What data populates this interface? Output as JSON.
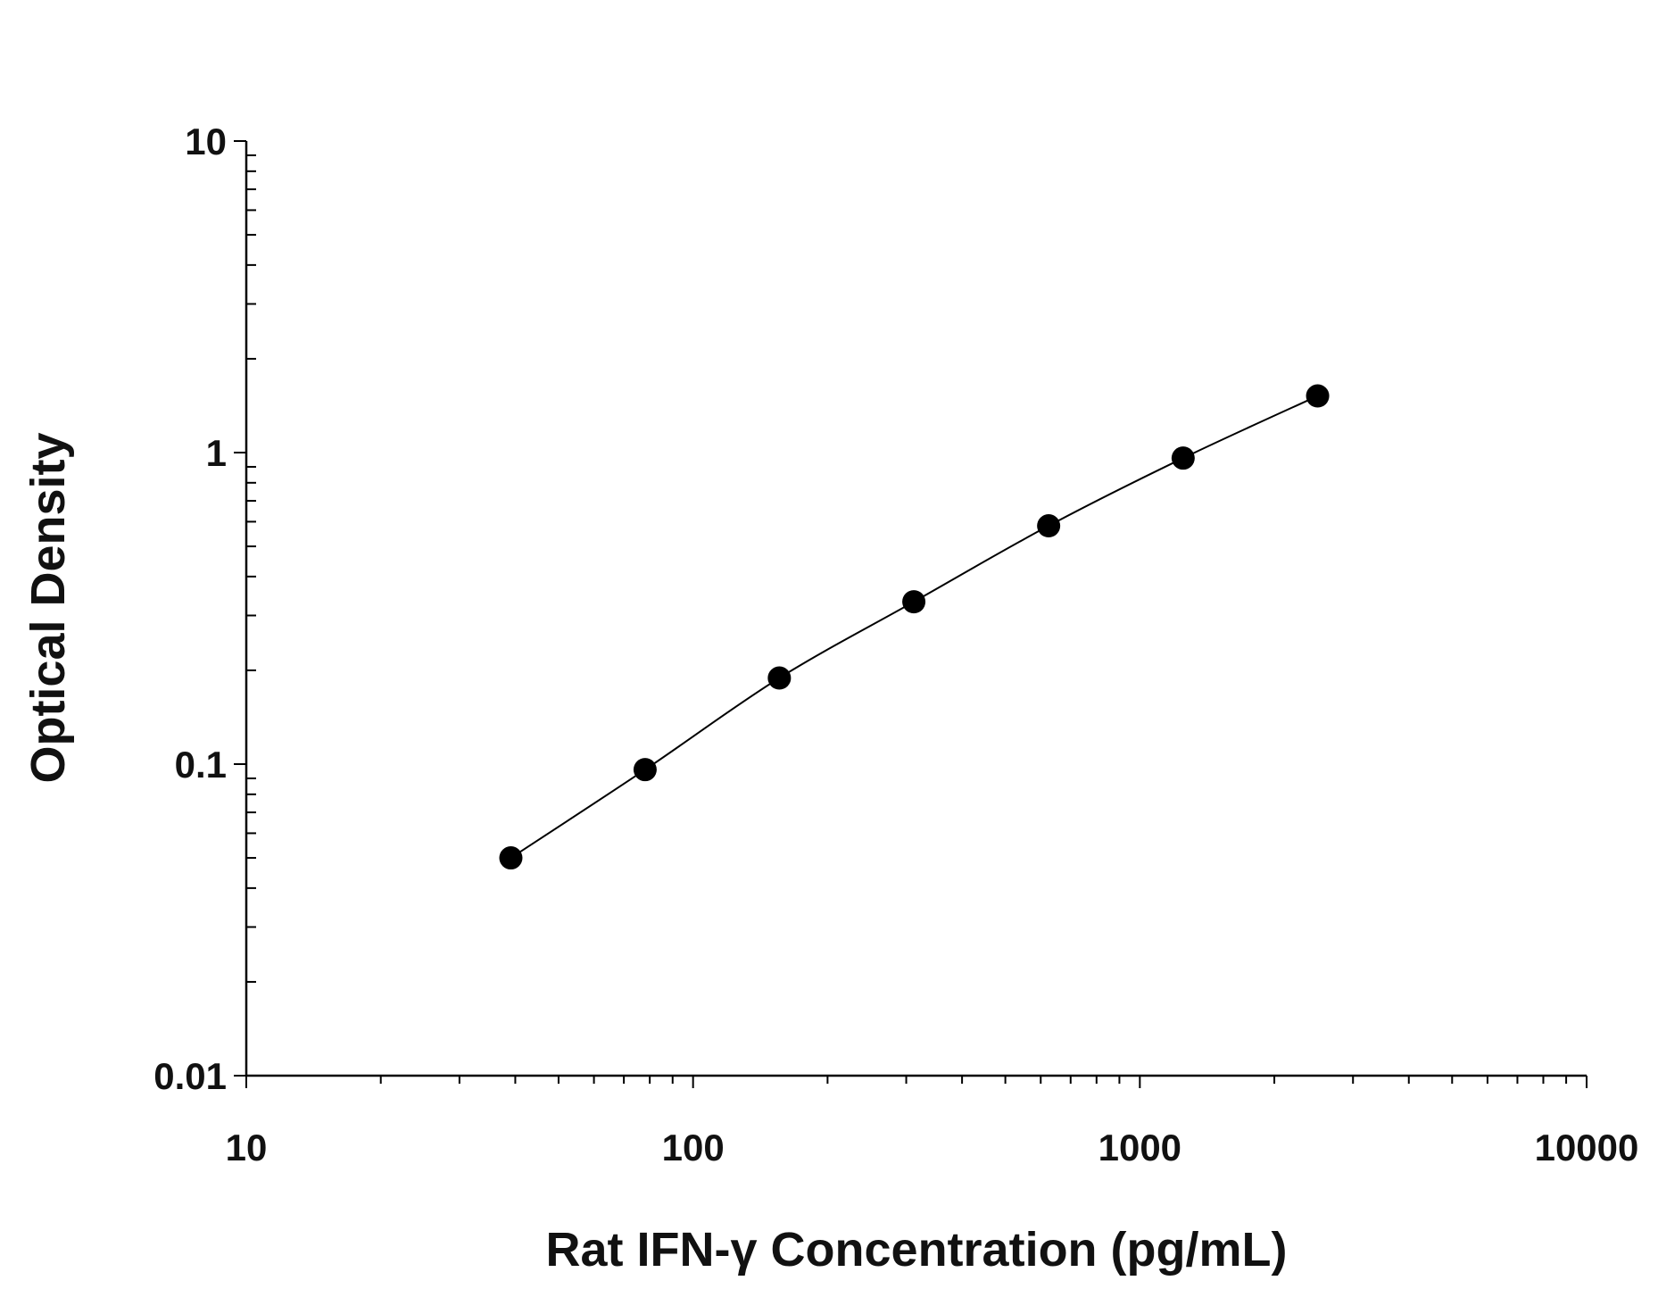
{
  "chart_data": {
    "type": "scatter",
    "title": "",
    "xlabel": "Rat IFN-γ Concentration (pg/mL)",
    "ylabel": "Optical Density",
    "x_scale": "log",
    "y_scale": "log",
    "xlim": [
      10,
      10000
    ],
    "ylim": [
      0.01,
      10
    ],
    "x_ticks": [
      "10",
      "100",
      "1000",
      "10000"
    ],
    "y_ticks": [
      "0.01",
      "0.1",
      "1",
      "10"
    ],
    "grid": false,
    "fit_curve": true,
    "marker_color": "#000000",
    "series": [
      {
        "x": [
          39.1,
          78.1,
          156,
          312,
          625,
          1250,
          2500
        ],
        "y": [
          0.05,
          0.096,
          0.189,
          0.332,
          0.582,
          0.96,
          1.52
        ]
      }
    ]
  }
}
